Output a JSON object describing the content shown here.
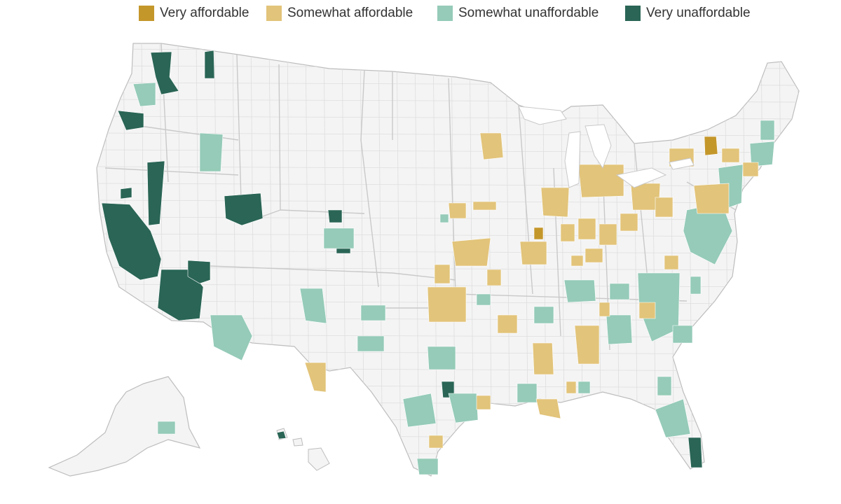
{
  "legend": {
    "items": [
      {
        "key": "very_affordable",
        "label": "Very affordable",
        "color": "#c4972b"
      },
      {
        "key": "somewhat_affordable",
        "label": "Somewhat affordable",
        "color": "#e2c47a"
      },
      {
        "key": "somewhat_unaffordable",
        "label": "Somewhat unaffordable",
        "color": "#95cbb8"
      },
      {
        "key": "very_unaffordable",
        "label": "Very unaffordable",
        "color": "#2a6555"
      }
    ]
  },
  "map": {
    "base_fill": "#f4f4f4",
    "border_color": "#c9c9c9"
  }
}
